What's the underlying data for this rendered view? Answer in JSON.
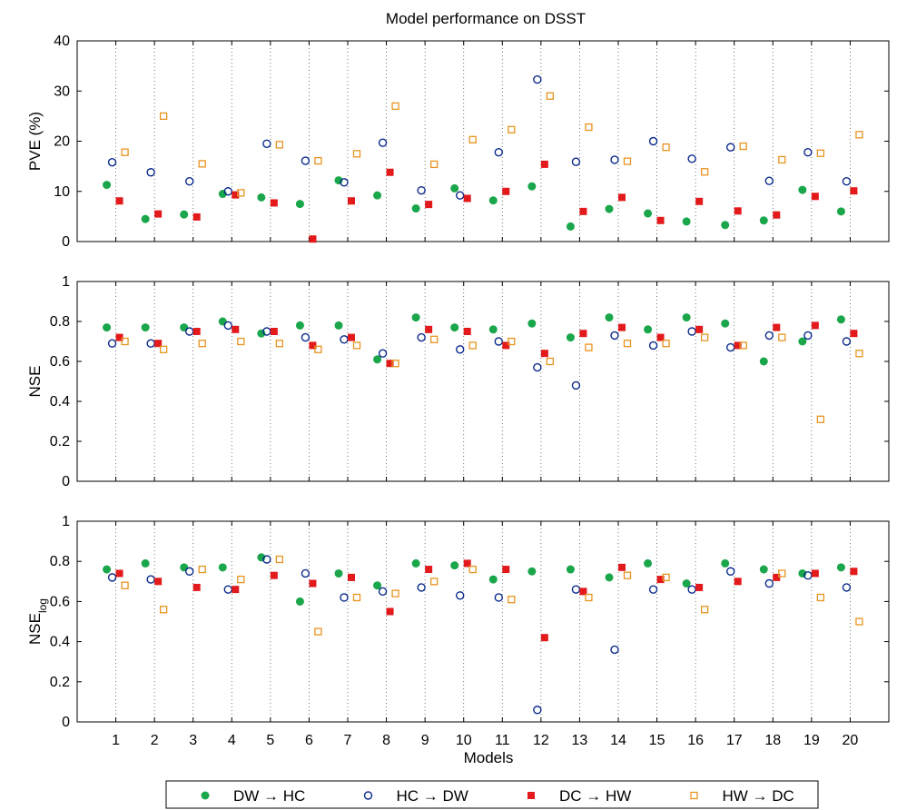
{
  "chart_data": {
    "title": "Model performance on DSST",
    "type": "scatter",
    "xlabel": "Models",
    "categories": [
      "1",
      "2",
      "3",
      "4",
      "5",
      "6",
      "7",
      "8",
      "9",
      "10",
      "11",
      "12",
      "13",
      "14",
      "15",
      "16",
      "17",
      "18",
      "19",
      "20"
    ],
    "colors": {
      "green": "#1aa64a",
      "navy": "#0a2a8c",
      "red": "#e31a1c",
      "orange": "#e8941f"
    },
    "legend": {
      "placement": "bottom",
      "entries": [
        {
          "from": "DW",
          "arrow": "→",
          "to": "HC",
          "marker": "filled-circle",
          "color": "#1aa64a"
        },
        {
          "from": "HC",
          "arrow": "→",
          "to": "DW",
          "marker": "open-circle",
          "color": "#0a2a8c"
        },
        {
          "from": "DC",
          "arrow": "→",
          "to": "HW",
          "marker": "filled-square",
          "color": "#e31a1c"
        },
        {
          "from": "HW",
          "arrow": "→",
          "to": "DC",
          "marker": "open-square",
          "color": "#e8941f"
        }
      ]
    },
    "panels": [
      {
        "ylabel": "PVE (%)",
        "ylim": [
          0,
          40
        ],
        "yticks": [
          "0",
          "10",
          "20",
          "30",
          "40"
        ],
        "series": [
          {
            "values": [
              11.3,
              4.5,
              5.4,
              9.5,
              8.8,
              7.5,
              12.2,
              9.2,
              6.6,
              10.6,
              8.2,
              11.0,
              3.0,
              6.5,
              5.6,
              4.0,
              3.3,
              4.2,
              10.3,
              6.0
            ]
          },
          {
            "values": [
              15.8,
              13.8,
              12.0,
              10.0,
              19.5,
              16.1,
              11.8,
              19.7,
              10.2,
              9.2,
              17.8,
              32.3,
              15.9,
              16.3,
              20.0,
              16.5,
              18.8,
              12.1,
              17.8,
              12.0
            ]
          },
          {
            "values": [
              8.1,
              5.5,
              4.9,
              9.3,
              7.7,
              0.5,
              8.1,
              13.8,
              7.4,
              8.6,
              10.0,
              15.4,
              6.0,
              8.8,
              4.2,
              8.0,
              6.1,
              5.3,
              9.0,
              10.1
            ]
          },
          {
            "values": [
              17.8,
              25.0,
              15.5,
              9.7,
              19.3,
              16.1,
              17.5,
              27.0,
              15.4,
              20.3,
              22.3,
              29.0,
              22.8,
              16.0,
              18.8,
              13.9,
              19.0,
              16.3,
              17.6,
              21.3
            ]
          }
        ]
      },
      {
        "ylabel": "NSE",
        "ylim": [
          0,
          1
        ],
        "yticks": [
          "0",
          "0.2",
          "0.4",
          "0.6",
          "0.8",
          "1"
        ],
        "series": [
          {
            "values": [
              0.77,
              0.77,
              0.77,
              0.8,
              0.74,
              0.78,
              0.78,
              0.61,
              0.82,
              0.77,
              0.76,
              0.79,
              0.72,
              0.82,
              0.76,
              0.82,
              0.79,
              0.6,
              0.7,
              0.81
            ]
          },
          {
            "values": [
              0.69,
              0.69,
              0.75,
              0.78,
              0.75,
              0.72,
              0.71,
              0.64,
              0.72,
              0.66,
              0.7,
              0.57,
              0.48,
              0.73,
              0.68,
              0.75,
              0.67,
              0.73,
              0.73,
              0.7
            ]
          },
          {
            "values": [
              0.72,
              0.69,
              0.75,
              0.76,
              0.75,
              0.68,
              0.72,
              0.59,
              0.76,
              0.75,
              0.68,
              0.64,
              0.74,
              0.77,
              0.72,
              0.76,
              0.68,
              0.77,
              0.78,
              0.74
            ]
          },
          {
            "values": [
              0.7,
              0.66,
              0.69,
              0.7,
              0.69,
              0.66,
              0.68,
              0.59,
              0.71,
              0.68,
              0.7,
              0.6,
              0.67,
              0.69,
              0.69,
              0.72,
              0.68,
              0.72,
              0.31,
              0.64
            ]
          }
        ]
      },
      {
        "ylabel": "NSE",
        "ylabel_sub": "log",
        "ylim": [
          0,
          1
        ],
        "yticks": [
          "0",
          "0.2",
          "0.4",
          "0.6",
          "0.8",
          "1"
        ],
        "series": [
          {
            "values": [
              0.76,
              0.79,
              0.77,
              0.77,
              0.82,
              0.6,
              0.74,
              0.68,
              0.79,
              0.78,
              0.71,
              0.75,
              0.76,
              0.72,
              0.79,
              0.69,
              0.79,
              0.76,
              0.74,
              0.77
            ]
          },
          {
            "values": [
              0.72,
              0.71,
              0.75,
              0.66,
              0.81,
              0.74,
              0.62,
              0.65,
              0.67,
              0.63,
              0.62,
              0.06,
              0.66,
              0.36,
              0.66,
              0.66,
              0.75,
              0.69,
              0.73,
              0.67
            ]
          },
          {
            "values": [
              0.74,
              0.7,
              0.67,
              0.66,
              0.73,
              0.69,
              0.72,
              0.55,
              0.76,
              0.79,
              0.76,
              0.42,
              0.65,
              0.77,
              0.71,
              0.67,
              0.7,
              0.72,
              0.74,
              0.75
            ]
          },
          {
            "values": [
              0.68,
              0.56,
              0.76,
              0.71,
              0.81,
              0.45,
              0.62,
              0.64,
              0.7,
              0.76,
              0.61,
              null,
              0.62,
              0.73,
              0.72,
              0.56,
              null,
              0.74,
              0.62,
              0.5
            ]
          }
        ]
      }
    ]
  }
}
